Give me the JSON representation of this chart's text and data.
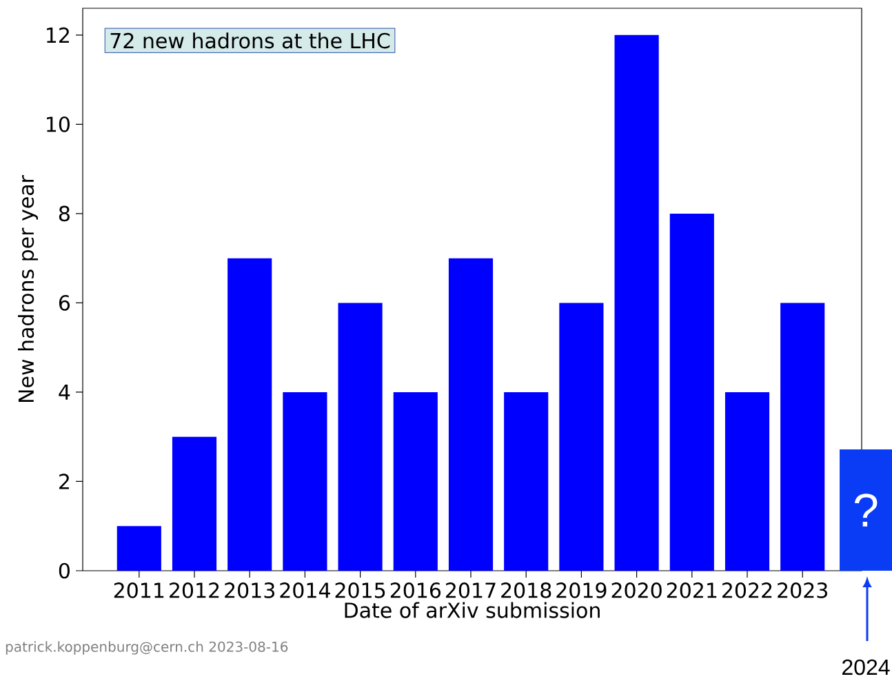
{
  "chart_data": {
    "type": "bar",
    "xlabel": "Date of arXiv submission",
    "ylabel": "New hadrons per year",
    "categories": [
      "2011",
      "2012",
      "2013",
      "2014",
      "2015",
      "2016",
      "2017",
      "2018",
      "2019",
      "2020",
      "2021",
      "2022",
      "2023"
    ],
    "values": [
      1,
      3,
      7,
      4,
      6,
      4,
      7,
      4,
      6,
      12,
      8,
      4,
      6
    ],
    "color": "#0000ff",
    "ylim": [
      0,
      12.6
    ],
    "yticks": [
      0,
      2,
      4,
      6,
      8,
      10,
      12
    ],
    "annotations": [
      "72 new hadrons at the LHC",
      "patrick.koppenburg@cern.ch 2023-08-16",
      "?",
      "2024"
    ]
  }
}
